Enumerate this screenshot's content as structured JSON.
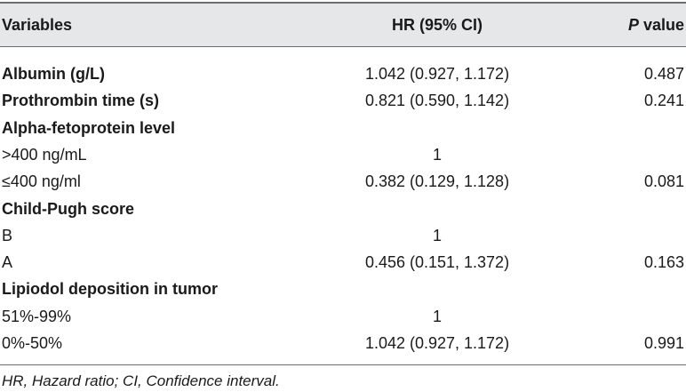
{
  "table": {
    "headers": {
      "variables": "Variables",
      "hr": "HR (95% CI)",
      "p_italic": "P",
      "p_rest": " value"
    },
    "rows": [
      {
        "variable": "Albumin (g/L)",
        "bold": true,
        "hr": "1.042 (0.927, 1.172)",
        "p": "0.487"
      },
      {
        "variable": "Prothrombin time (s)",
        "bold": true,
        "hr": "0.821 (0.590, 1.142)",
        "p": "0.241"
      },
      {
        "variable": "Alpha-fetoprotein level",
        "bold": true,
        "hr": "",
        "p": ""
      },
      {
        "variable": ">400 ng/mL",
        "bold": false,
        "hr": "1",
        "p": ""
      },
      {
        "variable": "≤400 ng/ml",
        "bold": false,
        "hr": "0.382 (0.129, 1.128)",
        "p": "0.081"
      },
      {
        "variable": "Child-Pugh score",
        "bold": true,
        "hr": "",
        "p": ""
      },
      {
        "variable": "B",
        "bold": false,
        "hr": "1",
        "p": ""
      },
      {
        "variable": "A",
        "bold": false,
        "hr": "0.456 (0.151, 1.372)",
        "p": "0.163"
      },
      {
        "variable": "Lipiodol deposition in tumor",
        "bold": true,
        "hr": "",
        "p": ""
      },
      {
        "variable": "51%-99%",
        "bold": false,
        "hr": "1",
        "p": ""
      },
      {
        "variable": "0%-50%",
        "bold": false,
        "hr": "1.042 (0.927, 1.172)",
        "p": "0.991"
      }
    ],
    "footnote": "HR, Hazard ratio; CI, Confidence interval."
  },
  "colors": {
    "header_background": "#e6e7e8",
    "rule": "#6d6e71",
    "text": "#1a1a1a"
  }
}
